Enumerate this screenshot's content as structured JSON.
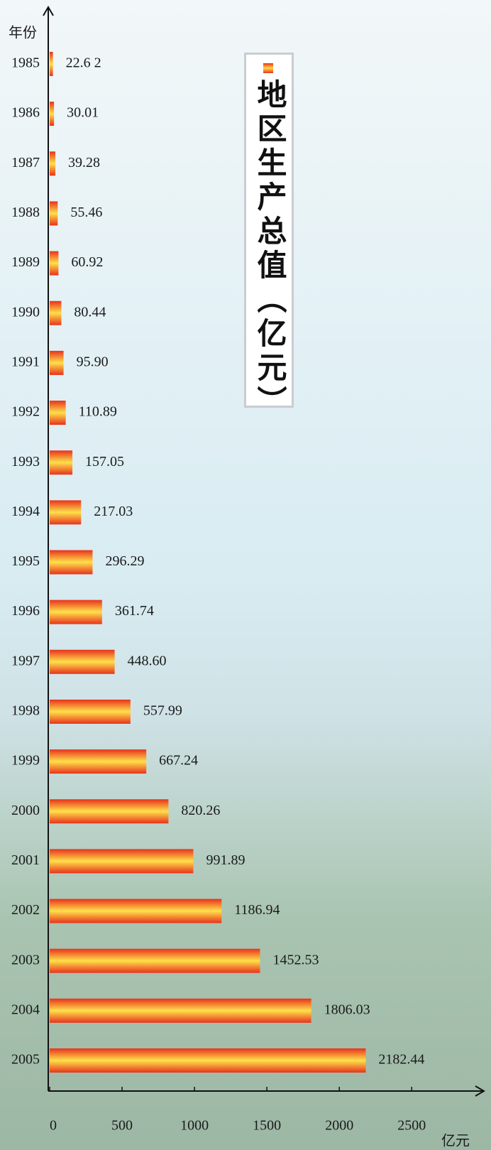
{
  "chart_data": {
    "type": "bar",
    "orientation": "horizontal",
    "title": "地区生产总值（亿元）",
    "ylabel": "年份",
    "xlabel": "亿元",
    "categories": [
      "1985",
      "1986",
      "1987",
      "1988",
      "1989",
      "1990",
      "1991",
      "1992",
      "1993",
      "1994",
      "1995",
      "1996",
      "1997",
      "1998",
      "1999",
      "2000",
      "2001",
      "2002",
      "2003",
      "2004",
      "2005"
    ],
    "values": [
      22.62,
      30.01,
      39.28,
      55.46,
      60.92,
      80.44,
      95.9,
      110.89,
      157.05,
      217.03,
      296.29,
      361.74,
      448.6,
      557.99,
      667.24,
      820.26,
      991.89,
      1186.94,
      1452.53,
      1806.03,
      2182.44
    ],
    "value_labels": [
      "22.6 2",
      "30.01",
      "39.28",
      "55.46",
      "60.92",
      "80.44",
      "95.90",
      "110.89",
      "157.05",
      "217.03",
      "296.29",
      "361.74",
      "448.60",
      "557.99",
      "667.24",
      "820.26",
      "991.89",
      "1186.94",
      "1452.53",
      "1806.03",
      "2182.44"
    ],
    "color": "#e8321c",
    "xlim": [
      0,
      2930
    ],
    "xticks": [
      0,
      500,
      1000,
      1500,
      2000,
      2500
    ]
  }
}
